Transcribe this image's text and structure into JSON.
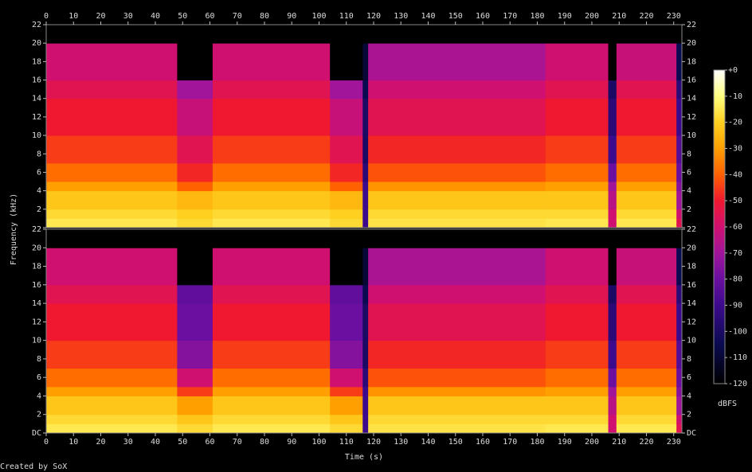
{
  "chart_data": {
    "type": "spectrogram",
    "xlabel": "Time (s)",
    "ylabel": "Frequency (kHz)",
    "zlabel": "dBFS",
    "footer": "Created by SoX",
    "xlim": [
      0,
      233
    ],
    "xticks": [
      0,
      10,
      20,
      30,
      40,
      50,
      60,
      70,
      80,
      90,
      100,
      110,
      120,
      130,
      140,
      150,
      160,
      170,
      180,
      190,
      200,
      210,
      220,
      230
    ],
    "ylim": [
      0,
      22
    ],
    "yticks": [
      {
        "value": 0,
        "label": "DC"
      },
      2,
      4,
      6,
      8,
      10,
      12,
      14,
      16,
      18,
      20,
      22
    ],
    "zlim": [
      -120,
      0
    ],
    "zticks": [
      {
        "value": 0,
        "label": "+0"
      },
      -10,
      -20,
      -30,
      -40,
      -50,
      -60,
      -70,
      -80,
      -90,
      -100,
      -110,
      -120
    ],
    "colormap": [
      {
        "value": -120,
        "color": "#000000"
      },
      {
        "value": -105,
        "color": "#0a0a50"
      },
      {
        "value": -90,
        "color": "#3c0a8c"
      },
      {
        "value": -80,
        "color": "#6a0fa0"
      },
      {
        "value": -70,
        "color": "#a0159a"
      },
      {
        "value": -60,
        "color": "#d01070"
      },
      {
        "value": -50,
        "color": "#f01830"
      },
      {
        "value": -40,
        "color": "#ff6000"
      },
      {
        "value": -30,
        "color": "#ffa000"
      },
      {
        "value": -20,
        "color": "#ffd020"
      },
      {
        "value": -10,
        "color": "#ffff80"
      },
      {
        "value": 0,
        "color": "#ffffff"
      }
    ],
    "x_edges": [
      0,
      48,
      61,
      104,
      116,
      118,
      183,
      206,
      209,
      231,
      233
    ],
    "y_edges": [
      0,
      1,
      2,
      4,
      5,
      7,
      10,
      14,
      16,
      20,
      22
    ],
    "z": [
      [
        [
          -15,
          -18,
          -22,
          -30,
          -38,
          -45,
          -50,
          -55,
          -60,
          -120
        ],
        [
          -18,
          -20,
          -25,
          -40,
          -48,
          -55,
          -62,
          -70,
          -120,
          -120
        ],
        [
          -15,
          -18,
          -22,
          -30,
          -38,
          -45,
          -50,
          -55,
          -60,
          -120
        ],
        [
          -18,
          -20,
          -25,
          -40,
          -48,
          -55,
          -62,
          -70,
          -120,
          -120
        ],
        [
          -90,
          -90,
          -90,
          -90,
          -95,
          -100,
          -100,
          -105,
          -110,
          -120
        ],
        [
          -16,
          -18,
          -22,
          -32,
          -42,
          -48,
          -55,
          -60,
          -68,
          -120
        ],
        [
          -15,
          -18,
          -22,
          -30,
          -38,
          -45,
          -50,
          -55,
          -60,
          -120
        ],
        [
          -60,
          -60,
          -65,
          -70,
          -80,
          -90,
          -95,
          -100,
          -120,
          -120
        ],
        [
          -15,
          -18,
          -22,
          -30,
          -38,
          -45,
          -50,
          -55,
          -62,
          -120
        ],
        [
          -55,
          -60,
          -70,
          -75,
          -80,
          -85,
          -90,
          -95,
          -105,
          -120
        ]
      ],
      [
        [
          -15,
          -18,
          -22,
          -30,
          -38,
          -45,
          -50,
          -55,
          -60,
          -120
        ],
        [
          -18,
          -22,
          -30,
          -45,
          -60,
          -75,
          -80,
          -82,
          -120,
          -120
        ],
        [
          -15,
          -18,
          -22,
          -30,
          -38,
          -45,
          -50,
          -55,
          -60,
          -120
        ],
        [
          -18,
          -22,
          -30,
          -45,
          -60,
          -75,
          -80,
          -82,
          -120,
          -120
        ],
        [
          -90,
          -90,
          -90,
          -90,
          -95,
          -100,
          -100,
          -105,
          -110,
          -120
        ],
        [
          -16,
          -18,
          -22,
          -32,
          -42,
          -48,
          -55,
          -60,
          -68,
          -120
        ],
        [
          -15,
          -18,
          -22,
          -30,
          -38,
          -45,
          -50,
          -55,
          -60,
          -120
        ],
        [
          -60,
          -60,
          -65,
          -70,
          -80,
          -90,
          -95,
          -100,
          -120,
          -120
        ],
        [
          -15,
          -18,
          -22,
          -30,
          -38,
          -45,
          -50,
          -55,
          -62,
          -120
        ],
        [
          -55,
          -60,
          -70,
          -75,
          -80,
          -85,
          -90,
          -95,
          -105,
          -120
        ]
      ]
    ]
  }
}
